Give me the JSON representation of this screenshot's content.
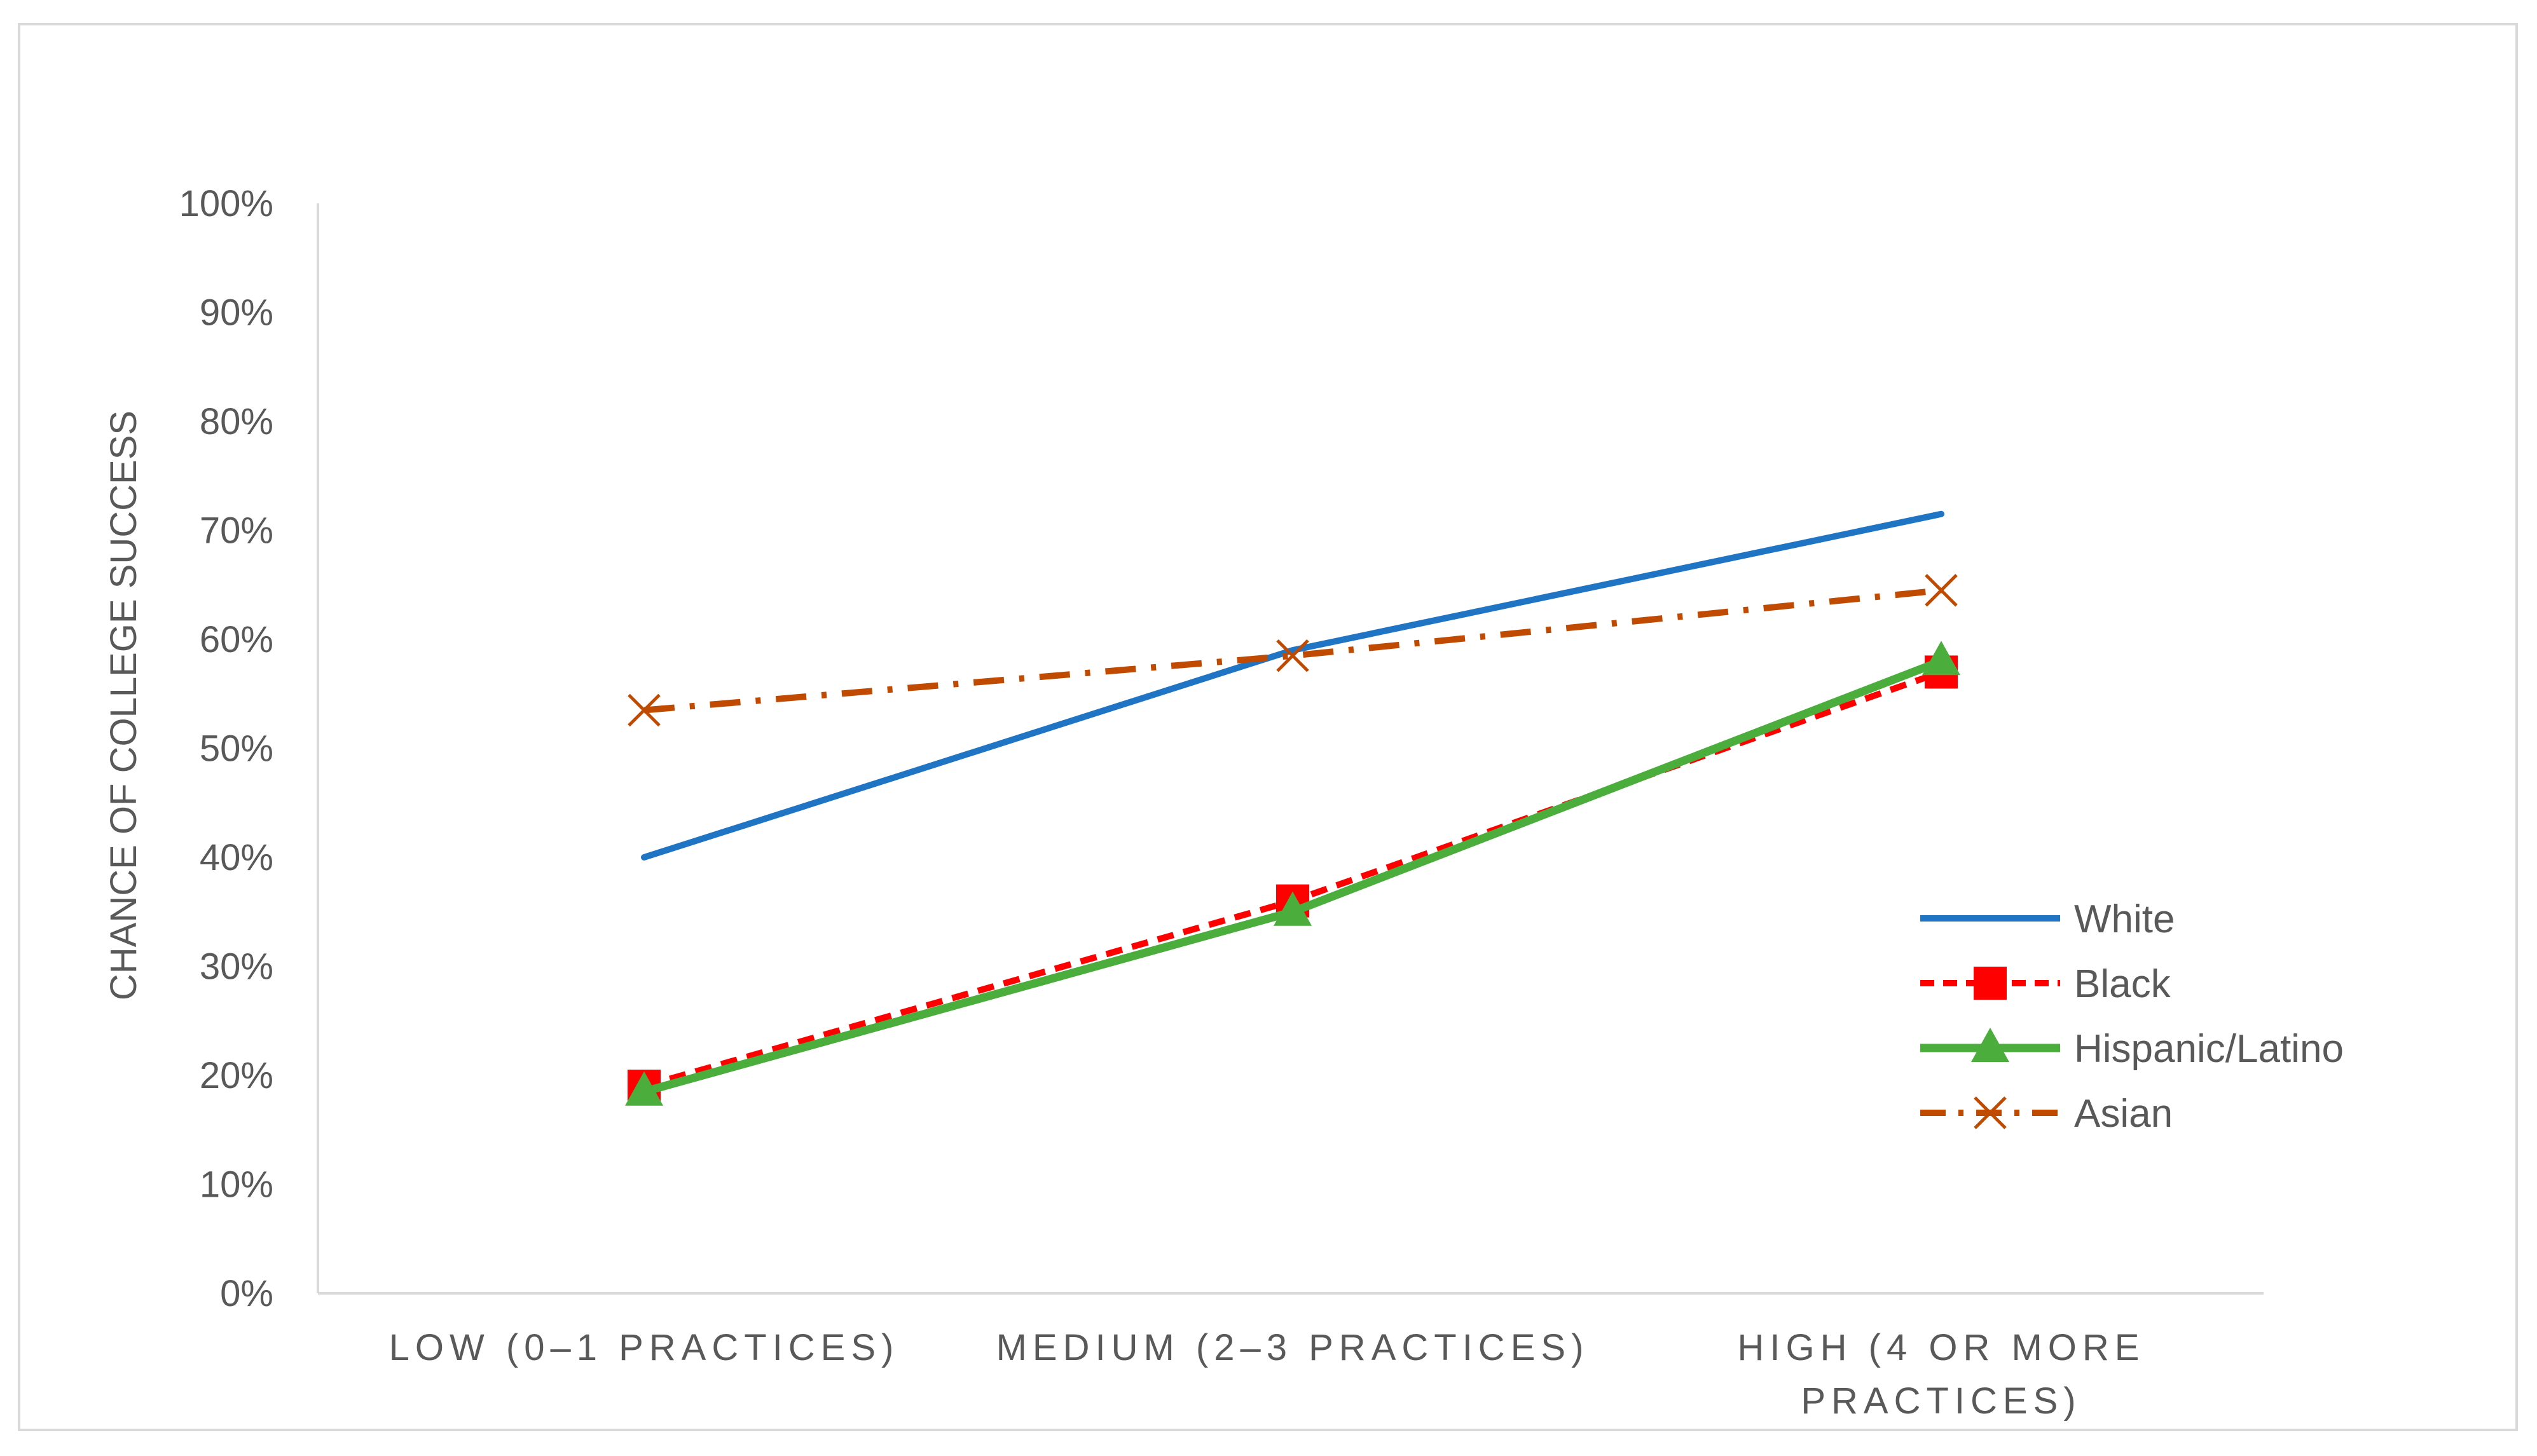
{
  "chart_data": {
    "type": "line",
    "title": "",
    "xlabel": "",
    "ylabel": "CHANCE OF COLLEGE SUCCESS",
    "categories": [
      [
        "LOW (0–1 PRACTICES)"
      ],
      [
        "MEDIUM (2–3 PRACTICES)"
      ],
      [
        "HIGH (4 OR MORE",
        "PRACTICES)"
      ]
    ],
    "ylim": [
      0,
      100
    ],
    "yticks": [
      "0%",
      "10%",
      "20%",
      "30%",
      "40%",
      "50%",
      "60%",
      "70%",
      "80%",
      "90%",
      "100%"
    ],
    "grid": false,
    "legend_position": "right",
    "series": [
      {
        "name": "White",
        "values": [
          40,
          59,
          71.5
        ],
        "color": "#1f74c4",
        "dash": "solid",
        "marker": "none"
      },
      {
        "name": "Black",
        "values": [
          19,
          36,
          57
        ],
        "color": "#ff0000",
        "dash": "dashed",
        "marker": "square"
      },
      {
        "name": "Hispanic/Latino",
        "values": [
          18.5,
          35,
          58
        ],
        "color": "#4aad3c",
        "dash": "solid",
        "marker": "triangle"
      },
      {
        "name": "Asian",
        "values": [
          53.5,
          58.5,
          64.5
        ],
        "color": "#c04a00",
        "dash": "dashdot",
        "marker": "x"
      }
    ]
  }
}
